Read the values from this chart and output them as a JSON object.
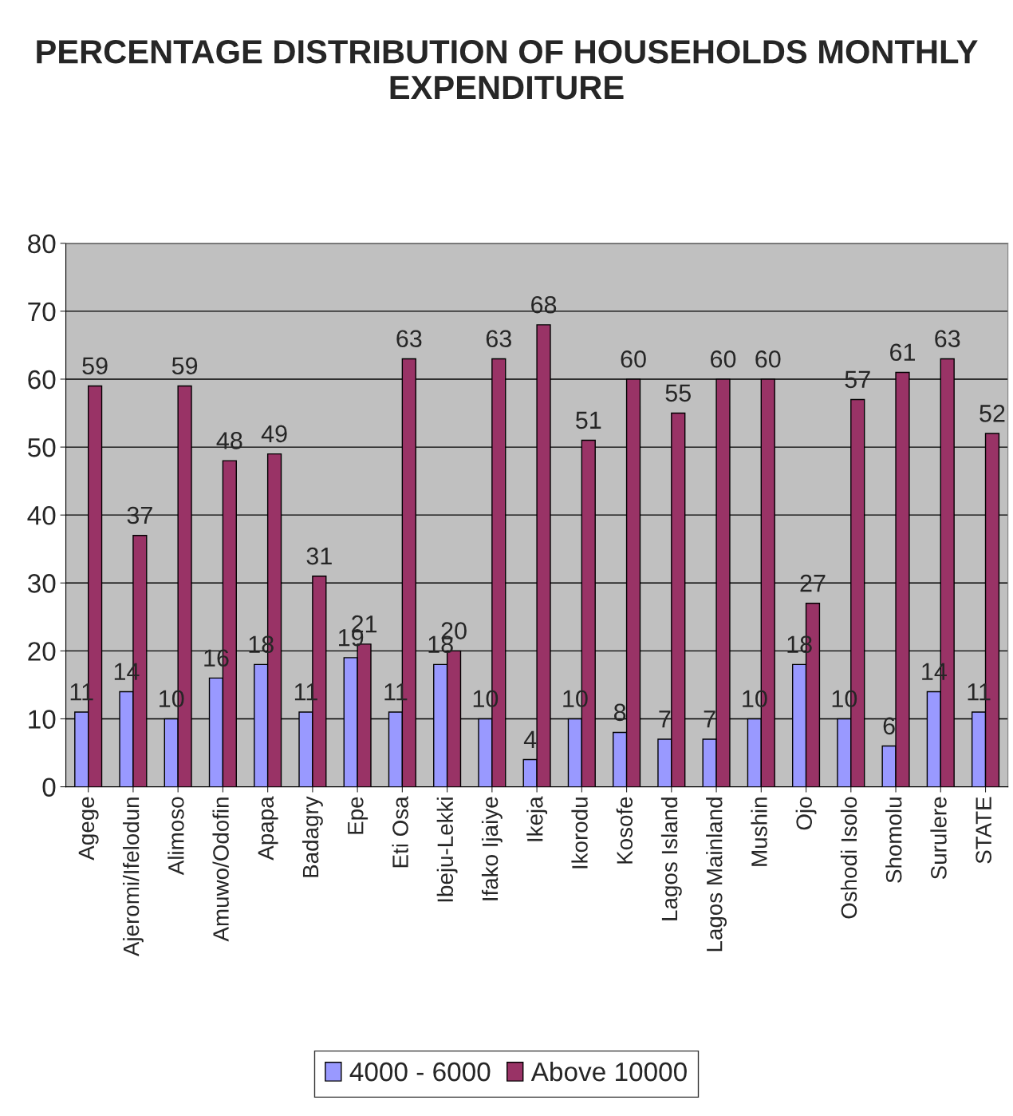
{
  "chart_data": {
    "type": "bar",
    "title": "PERCENTAGE DISTRIBUTION OF HOUSEHOLDS MONTHLY EXPENDITURE",
    "categories": [
      "Agege",
      "Ajeromi/Ifelodun",
      "Alimoso",
      "Amuwo/Odofin",
      "Apapa",
      "Badagry",
      "Epe",
      "Eti Osa",
      "Ibeju-Lekki",
      "Ifako Ijaiye",
      "Ikeja",
      "Ikorodu",
      "Kosofe",
      "Lagos Island",
      "Lagos Mainland",
      "Mushin",
      "Ojo",
      "Oshodi Isolo",
      "Shomolu",
      "Surulere",
      "STATE"
    ],
    "series": [
      {
        "name": "4000 - 6000",
        "color": "#9999ff",
        "values": [
          11,
          14,
          10,
          16,
          18,
          11,
          19,
          11,
          18,
          10,
          4,
          10,
          8,
          7,
          7,
          10,
          18,
          10,
          6,
          14,
          11
        ]
      },
      {
        "name": "Above 10000",
        "color": "#993366",
        "values": [
          59,
          37,
          59,
          48,
          49,
          31,
          21,
          63,
          20,
          63,
          68,
          51,
          60,
          55,
          60,
          60,
          27,
          57,
          61,
          63,
          52
        ]
      }
    ],
    "ylim": [
      0,
      80
    ],
    "yticks": [
      0,
      10,
      20,
      30,
      40,
      50,
      60,
      70,
      80
    ],
    "grid": "y",
    "legend": "bottom",
    "data_labels": true
  }
}
